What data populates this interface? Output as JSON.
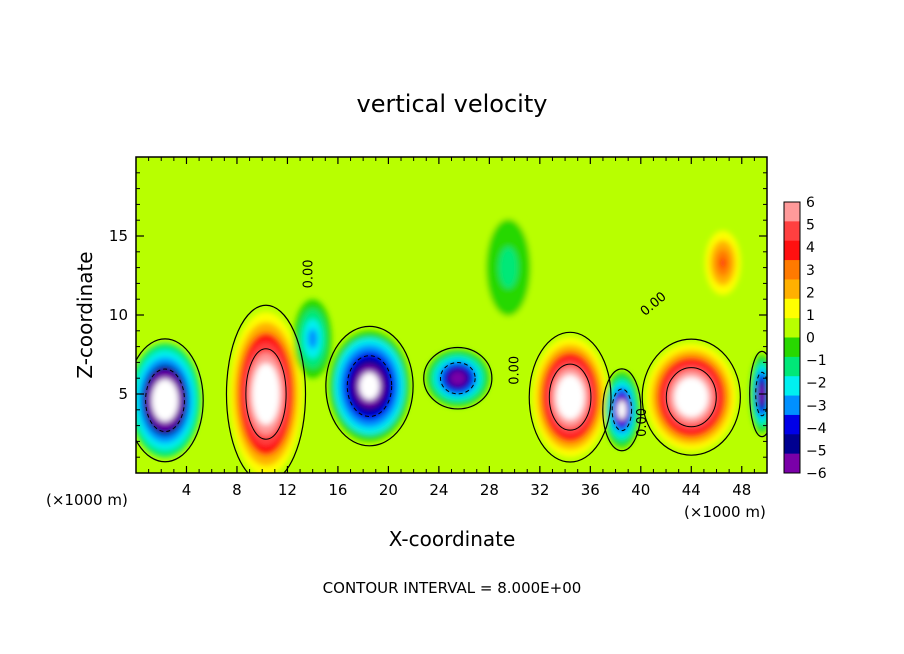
{
  "chart_data": {
    "type": "heatmap",
    "title": "vertical velocity",
    "xlabel": "X-coordinate",
    "ylabel": "Z-coordinate",
    "x_unit": "(×1000 m)",
    "x_unit_right": "(×1000 m)",
    "xlim": [
      0,
      50
    ],
    "ylim": [
      0,
      20
    ],
    "xticks": [
      4,
      8,
      12,
      16,
      20,
      24,
      28,
      32,
      36,
      40,
      44,
      48
    ],
    "yticks": [
      5,
      10,
      15
    ],
    "colorbar": {
      "ticks": [
        6,
        5,
        4,
        3,
        2,
        1,
        0,
        -1,
        -2,
        -3,
        -4,
        -5,
        -6
      ],
      "tick_labels": [
        "6",
        "5",
        "4",
        "3",
        "2",
        "1",
        "0",
        "−1",
        "−2",
        "−3",
        "−4",
        "−5",
        "−6"
      ],
      "colors": [
        "#ff9a9a",
        "#ff4040",
        "#ff1010",
        "#ff7a00",
        "#ffb000",
        "#ffff00",
        "#b8ff00",
        "#28d800",
        "#00e878",
        "#00f0f0",
        "#0090ff",
        "#0000e8",
        "#000090",
        "#7a00a8"
      ]
    },
    "background_value": 0.3,
    "cells": [
      {
        "x": 2.3,
        "z": 4.6,
        "rx": 2.8,
        "rz": 3.6,
        "v": -9
      },
      {
        "x": 10.3,
        "z": 5.0,
        "rx": 2.9,
        "rz": 5.2,
        "v": 9
      },
      {
        "x": 18.5,
        "z": 5.5,
        "rx": 3.2,
        "rz": 3.5,
        "v": -8
      },
      {
        "x": 25.5,
        "z": 6.0,
        "rx": 2.5,
        "rz": 1.8,
        "v": -6
      },
      {
        "x": 34.4,
        "z": 4.8,
        "rx": 3.0,
        "rz": 3.8,
        "v": 9
      },
      {
        "x": 38.5,
        "z": 4.0,
        "rx": 1.4,
        "rz": 2.4,
        "v": -7
      },
      {
        "x": 44.0,
        "z": 4.8,
        "rx": 3.6,
        "rz": 3.4,
        "v": 9
      },
      {
        "x": 49.6,
        "z": 5.0,
        "rx": 0.9,
        "rz": 2.5,
        "v": -6
      },
      {
        "x": 29.5,
        "z": 13.0,
        "rx": 2.0,
        "rz": 3.5,
        "v": -1.5
      },
      {
        "x": 46.5,
        "z": 13.3,
        "rx": 1.6,
        "rz": 2.3,
        "v": 3.5
      },
      {
        "x": 14.0,
        "z": 8.5,
        "rx": 1.5,
        "rz": 2.5,
        "v": -3
      }
    ],
    "contours": [
      {
        "label": "0.00",
        "label_x": 14.0,
        "label_z": 12.6,
        "label_rot": -90
      },
      {
        "label": "0.00",
        "label_x": 30.3,
        "label_z": 6.5,
        "label_rot": -90
      },
      {
        "label": "0.00",
        "label_x": 41.2,
        "label_z": 10.5,
        "label_rot": -40
      },
      {
        "label": "0.00",
        "label_x": 40.4,
        "label_z": 3.2,
        "label_rot": -90
      }
    ],
    "footnote": "CONTOUR INTERVAL = 8.000E+00"
  }
}
